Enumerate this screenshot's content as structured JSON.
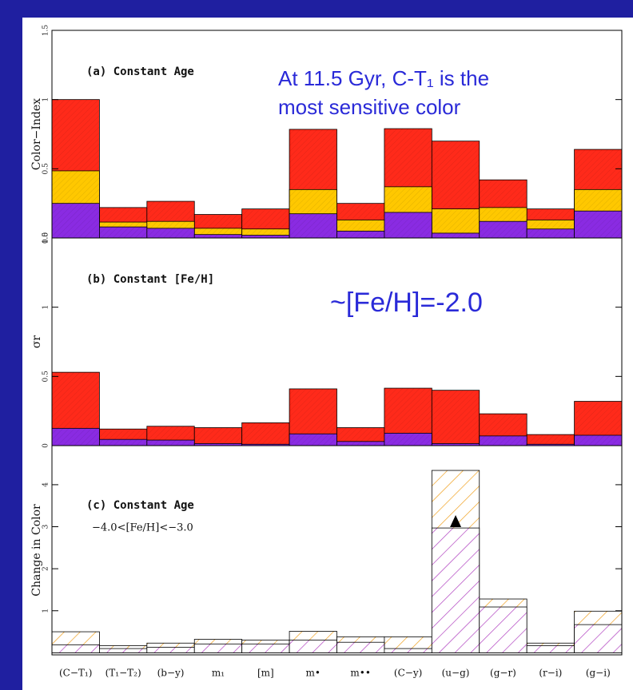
{
  "chart_data": [
    {
      "type": "bar",
      "title": "(a) Constant Age",
      "ylabel": "Color−Index",
      "annotation": [
        "At 11.5 Gyr, C-T₁ is the",
        "most sensitive color"
      ],
      "annotation_size": 26,
      "ylim": [
        0,
        1.5
      ],
      "yticks": [
        {
          "value": 0,
          "label": "0.0"
        },
        0.5,
        1,
        1.5
      ],
      "hatch": false,
      "series": [
        {
          "color": "#ff2a1a",
          "values": [
            1.0,
            0.22,
            0.265,
            0.17,
            0.21,
            0.785,
            0.25,
            0.79,
            0.7,
            0.42,
            0.21,
            0.64
          ]
        },
        {
          "color": "#ffc800",
          "values": [
            0.485,
            0.115,
            0.12,
            0.07,
            0.065,
            0.35,
            0.13,
            0.37,
            0.21,
            0.22,
            0.13,
            0.35
          ]
        },
        {
          "color": "#8a2be2",
          "values": [
            0.25,
            0.08,
            0.07,
            0.025,
            0.02,
            0.175,
            0.05,
            0.185,
            0.035,
            0.12,
            0.065,
            0.195
          ]
        }
      ]
    },
    {
      "type": "bar",
      "title": "(b) Constant [Fe/H]",
      "ylabel": "σr",
      "annotation": [
        "~[Fe/H]=-2.0"
      ],
      "annotation_size": 34,
      "ylim": [
        0,
        1.5
      ],
      "yticks": [
        0,
        0.5,
        1,
        1.5
      ],
      "hatch": false,
      "series": [
        {
          "color": "#ff2a1a",
          "values": [
            0.53,
            0.12,
            0.14,
            0.13,
            0.165,
            0.41,
            0.13,
            0.415,
            0.4,
            0.23,
            0.08,
            0.32
          ]
        },
        {
          "color": "#8a2be2",
          "values": [
            0.125,
            0.045,
            0.04,
            0.015,
            0.01,
            0.085,
            0.03,
            0.09,
            0.015,
            0.07,
            0.01,
            0.075
          ]
        }
      ]
    },
    {
      "type": "bar",
      "title": "(c) Constant Age",
      "subtitle": "−4.0<[Fe/H]<−3.0",
      "ylabel": "Change in Color",
      "categories": [
        "(C−T₁)",
        "(T₁−T₂)",
        "(b−y)",
        "m₁",
        "[m]",
        "m•",
        "m••",
        "(C−y)",
        "(u−g)",
        "(g−r)",
        "(r−i)",
        "(g−i)"
      ],
      "ylim": [
        -0.05,
        4.93
      ],
      "yticks": [
        1,
        2,
        3,
        4
      ],
      "hatch": true,
      "series": [
        {
          "color": "#f0a020",
          "values": [
            0.5,
            0.17,
            0.23,
            0.32,
            0.3,
            0.51,
            0.38,
            0.38,
            4.34,
            1.28,
            0.23,
            0.99
          ]
        },
        {
          "color": "#b040c0",
          "values": [
            0.19,
            0.1,
            0.13,
            0.21,
            0.21,
            0.3,
            0.25,
            0.1,
            2.97,
            1.09,
            0.17,
            0.67
          ]
        }
      ]
    }
  ]
}
